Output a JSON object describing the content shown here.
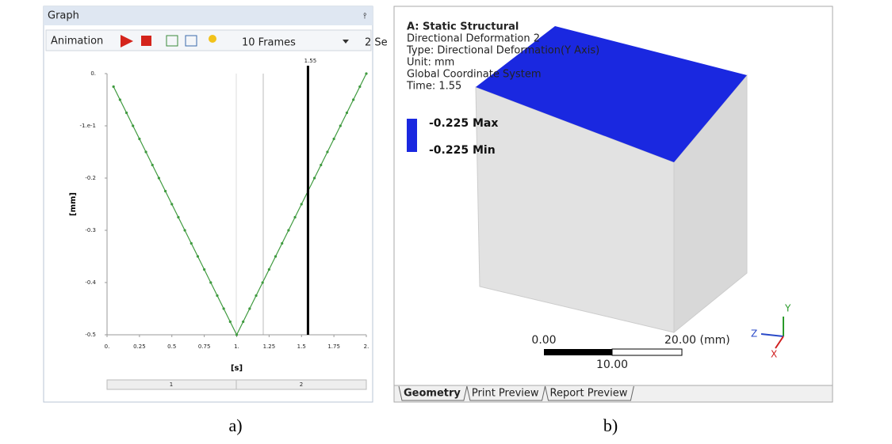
{
  "graph_panel": {
    "title": "Graph",
    "toolbar": {
      "animation": "Animation",
      "frames": "10 Frames",
      "duration": "2 Se"
    },
    "timeline": [
      "1",
      "2"
    ],
    "caption": "a)"
  },
  "chart_data": {
    "type": "line",
    "xlabel": "[s]",
    "ylabel": "[mm]",
    "x": [
      0.05,
      0.1,
      0.15,
      0.2,
      0.25,
      0.3,
      0.35,
      0.4,
      0.45,
      0.5,
      0.55,
      0.6,
      0.65,
      0.7,
      0.75,
      0.8,
      0.85,
      0.9,
      0.95,
      1.0,
      1.05,
      1.1,
      1.15,
      1.2,
      1.25,
      1.3,
      1.35,
      1.4,
      1.45,
      1.5,
      1.55,
      1.6,
      1.65,
      1.7,
      1.75,
      1.8,
      1.85,
      1.9,
      1.95,
      2.0
    ],
    "series": [
      {
        "color": "#3f9a3f",
        "values": [
          -0.025,
          -0.05,
          -0.075,
          -0.1,
          -0.125,
          -0.15,
          -0.175,
          -0.2,
          -0.225,
          -0.25,
          -0.275,
          -0.3,
          -0.325,
          -0.35,
          -0.375,
          -0.4,
          -0.425,
          -0.45,
          -0.475,
          -0.5,
          -0.475,
          -0.45,
          -0.425,
          -0.4,
          -0.375,
          -0.35,
          -0.325,
          -0.3,
          -0.275,
          -0.25,
          -0.225,
          -0.2,
          -0.175,
          -0.15,
          -0.125,
          -0.1,
          -0.075,
          -0.05,
          -0.025,
          0
        ]
      }
    ],
    "xlim": [
      0,
      2
    ],
    "ylim": [
      -0.5,
      0
    ],
    "xticks": [
      {
        "value": 0,
        "label": "0."
      },
      0.25,
      0.5,
      0.75,
      {
        "value": 1,
        "label": "1."
      },
      1.25,
      1.5,
      1.75,
      {
        "value": 2,
        "label": "2."
      }
    ],
    "yticks": [
      {
        "value": 0,
        "label": "0."
      },
      {
        "value": -0.1,
        "label": "-1.e-1"
      },
      -0.2,
      -0.3,
      -0.4,
      -0.5
    ],
    "cursor": {
      "value": 1.55,
      "label": "1.55"
    }
  },
  "viewer_panel": {
    "info": [
      "A: Static Structural",
      "Directional Deformation 2",
      "Type: Directional Deformation(Y Axis)",
      "Unit: mm",
      "Global Coordinate System",
      "Time: 1.55"
    ],
    "legend": {
      "max": "-0.225 Max",
      "min": "-0.225 Min"
    },
    "scale": {
      "start": "0.00",
      "end": "20.00 (mm)",
      "mid": "10.00"
    },
    "triad": {
      "y": "Y",
      "z": "Z",
      "x": "X"
    },
    "tabs": [
      "Geometry",
      "Print Preview",
      "Report Preview"
    ],
    "caption": "b)"
  }
}
